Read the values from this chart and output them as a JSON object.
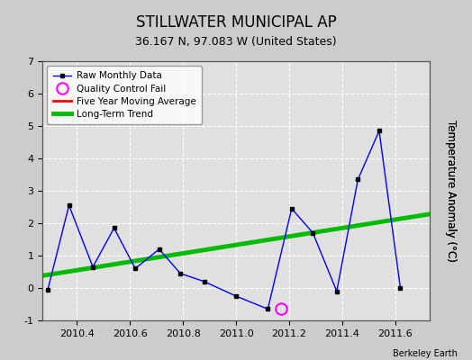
{
  "title": "STILLWATER MUNICIPAL AP",
  "subtitle": "36.167 N, 97.083 W (United States)",
  "ylabel": "Temperature Anomaly (°C)",
  "credit": "Berkeley Earth",
  "xlim": [
    2010.27,
    2011.73
  ],
  "ylim": [
    -1,
    7
  ],
  "yticks": [
    -1,
    0,
    1,
    2,
    3,
    4,
    5,
    6,
    7
  ],
  "xticks": [
    2010.4,
    2010.6,
    2010.8,
    2011.0,
    2011.2,
    2011.4,
    2011.6
  ],
  "raw_x": [
    2010.29,
    2010.37,
    2010.46,
    2010.54,
    2010.62,
    2010.71,
    2010.79,
    2010.88,
    2011.0,
    2011.12,
    2011.21,
    2011.29,
    2011.38,
    2011.46,
    2011.54,
    2011.62
  ],
  "raw_y": [
    -0.05,
    2.55,
    0.65,
    1.85,
    0.6,
    1.2,
    0.45,
    0.2,
    -0.25,
    -0.65,
    2.45,
    1.7,
    -0.1,
    3.35,
    4.85,
    0.0
  ],
  "qc_fail_x": [
    2011.17
  ],
  "qc_fail_y": [
    -0.65
  ],
  "trend_x": [
    2010.27,
    2011.73
  ],
  "trend_y": [
    0.38,
    2.28
  ],
  "bg_color": "#cccccc",
  "plot_bg_color": "#e0e0e0",
  "raw_color": "#0000ff",
  "raw_marker_color": "#000000",
  "trend_color": "#00bb00",
  "moving_avg_color": "#ff0000",
  "qc_color": "#ff00ff",
  "title_fontsize": 12,
  "subtitle_fontsize": 9,
  "label_fontsize": 8.5,
  "tick_fontsize": 8
}
